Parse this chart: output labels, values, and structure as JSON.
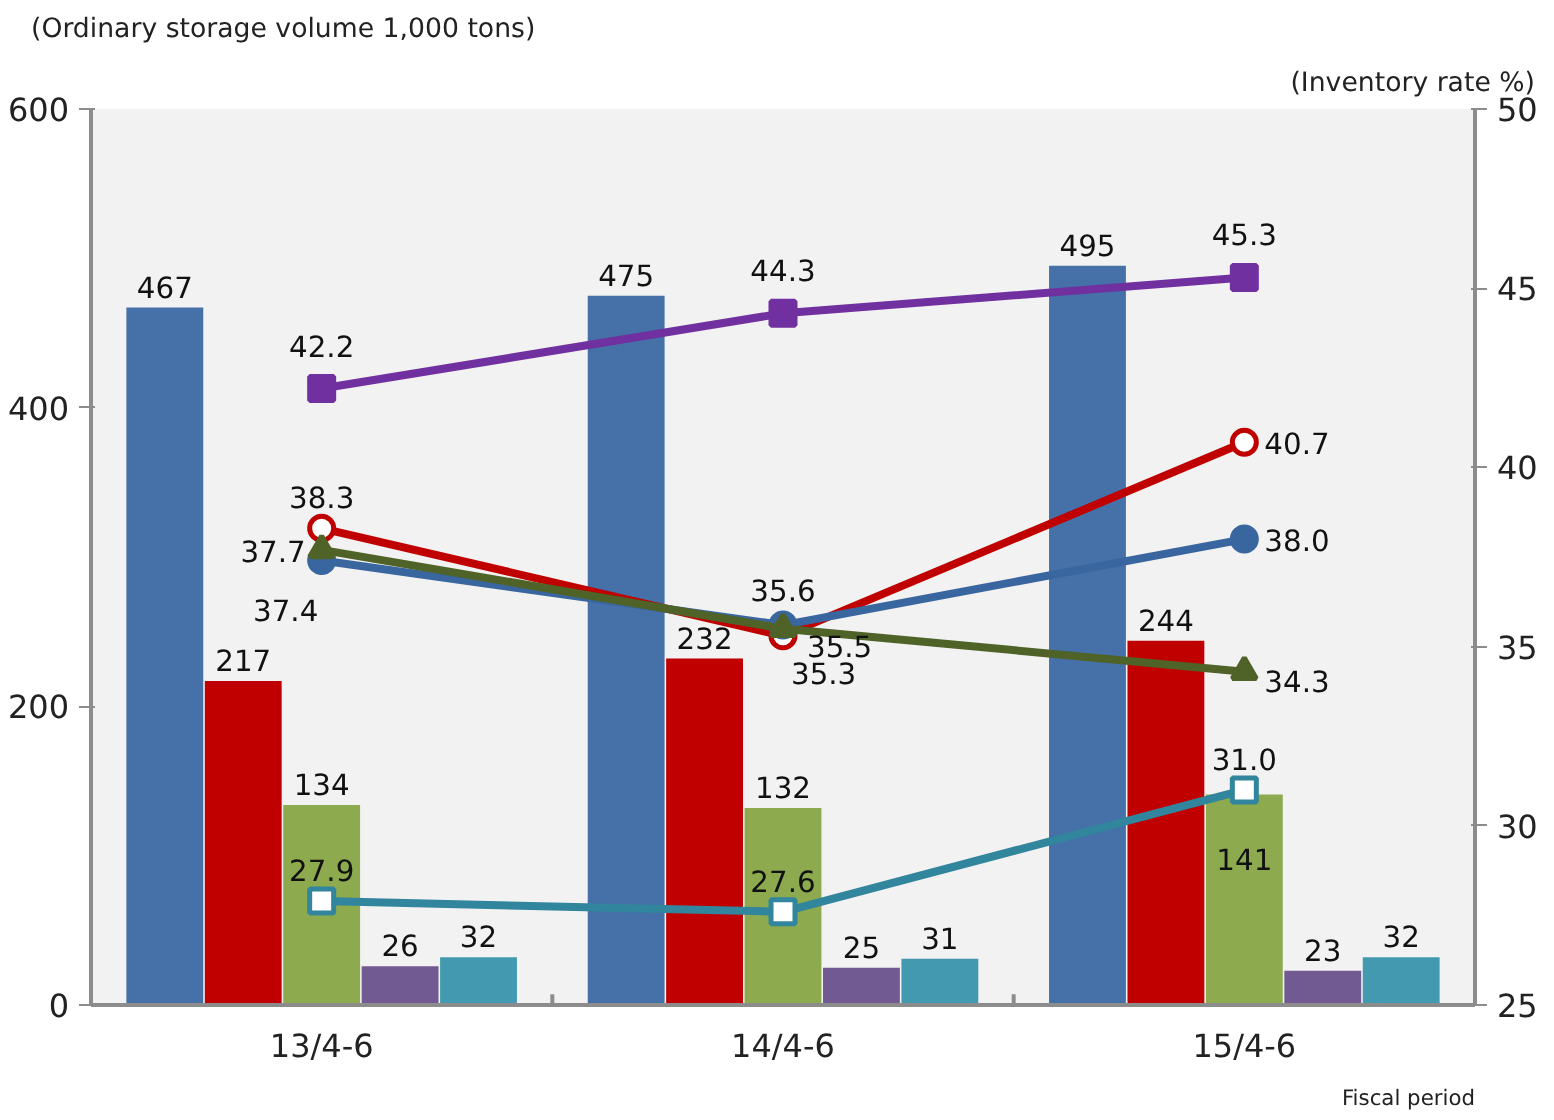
{
  "chart_data": {
    "type": "bar",
    "ylabel": "(Ordinary storage volume 1,000 tons)",
    "y2label": "(Inventory rate %)",
    "xlabel": "Fiscal period",
    "categories": [
      "13/4-6",
      "14/4-6",
      "15/4-6"
    ],
    "ylim": [
      0,
      600
    ],
    "yticks": [
      0,
      200,
      400,
      600
    ],
    "y2lim": [
      25,
      50
    ],
    "y2ticks": [
      25,
      30,
      35,
      40,
      45,
      50
    ],
    "data_labels": true,
    "grid": false,
    "series": [
      {
        "color": "#4571a8",
        "values": [
          467,
          475,
          495
        ]
      },
      {
        "color": "#c00000",
        "values": [
          217,
          232,
          244
        ]
      },
      {
        "color": "#8daa4f",
        "values": [
          134,
          132,
          141
        ]
      },
      {
        "color": "#715a91",
        "values": [
          26,
          25,
          23
        ]
      },
      {
        "color": "#4299b0",
        "values": [
          32,
          31,
          32
        ]
      },
      {
        "type": "line",
        "axis": "y2",
        "color": "#7030a0",
        "marker": "square",
        "values": [
          42.2,
          44.3,
          45.3
        ],
        "value_labels": [
          "42.2",
          "44.3",
          "45.3"
        ]
      },
      {
        "type": "line",
        "axis": "y2",
        "color": "#c00000",
        "marker": "circle",
        "values": [
          38.3,
          35.3,
          40.7
        ],
        "value_labels": [
          "38.3",
          "35.3",
          "40.7"
        ]
      },
      {
        "type": "line",
        "axis": "y2",
        "color": "#3a66a0",
        "marker": "circle",
        "values": [
          37.4,
          35.6,
          38.0
        ],
        "value_labels": [
          "37.4",
          "35.6",
          "38.0"
        ]
      },
      {
        "type": "line",
        "axis": "y2",
        "color": "#4f6228",
        "marker": "triangle",
        "values": [
          37.7,
          35.5,
          34.3
        ],
        "value_labels": [
          "37.7",
          "35.5",
          "34.3"
        ]
      },
      {
        "type": "line",
        "axis": "y2",
        "color": "#31859c",
        "marker": "square",
        "values": [
          27.9,
          27.6,
          31.0
        ],
        "value_labels": [
          "27.9",
          "27.6",
          "31.0"
        ]
      }
    ]
  }
}
